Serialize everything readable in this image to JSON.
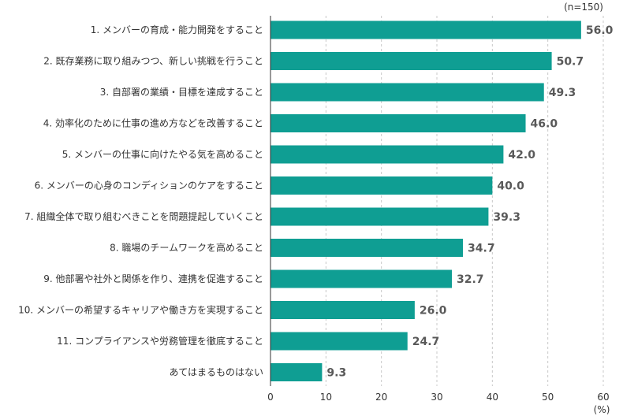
{
  "chart_data": {
    "type": "bar",
    "orientation": "horizontal",
    "n_label": "(n=150)",
    "unit_label": "(%)",
    "xlim": [
      0,
      60
    ],
    "xticks": [
      0,
      10,
      20,
      30,
      40,
      50,
      60
    ],
    "grid": true,
    "bar_color": "#0f9e93",
    "categories": [
      "1. メンバーの育成・能力開発をすること",
      "2. 既存業務に取り組みつつ、新しい挑戦を行うこと",
      "3. 自部署の業績・目標を達成すること",
      "4. 効率化のために仕事の進め方などを改善すること",
      "5. メンバーの仕事に向けたやる気を高めること",
      "6. メンバーの心身のコンディションのケアをすること",
      "7. 組織全体で取り組むべきことを問題提起していくこと",
      "8. 職場のチームワークを高めること",
      "9. 他部署や社外と関係を作り、連携を促進すること",
      "10. メンバーの希望するキャリアや働き方を実現すること",
      "11. コンプライアンスや労務管理を徹底すること",
      "あてはまるものはない"
    ],
    "values": [
      56.0,
      50.7,
      49.3,
      46.0,
      42.0,
      40.0,
      39.3,
      34.7,
      32.7,
      26.0,
      24.7,
      9.3
    ],
    "value_labels": [
      "56.0",
      "50.7",
      "49.3",
      "46.0",
      "42.0",
      "40.0",
      "39.3",
      "34.7",
      "32.7",
      "26.0",
      "24.7",
      "9.3"
    ]
  }
}
